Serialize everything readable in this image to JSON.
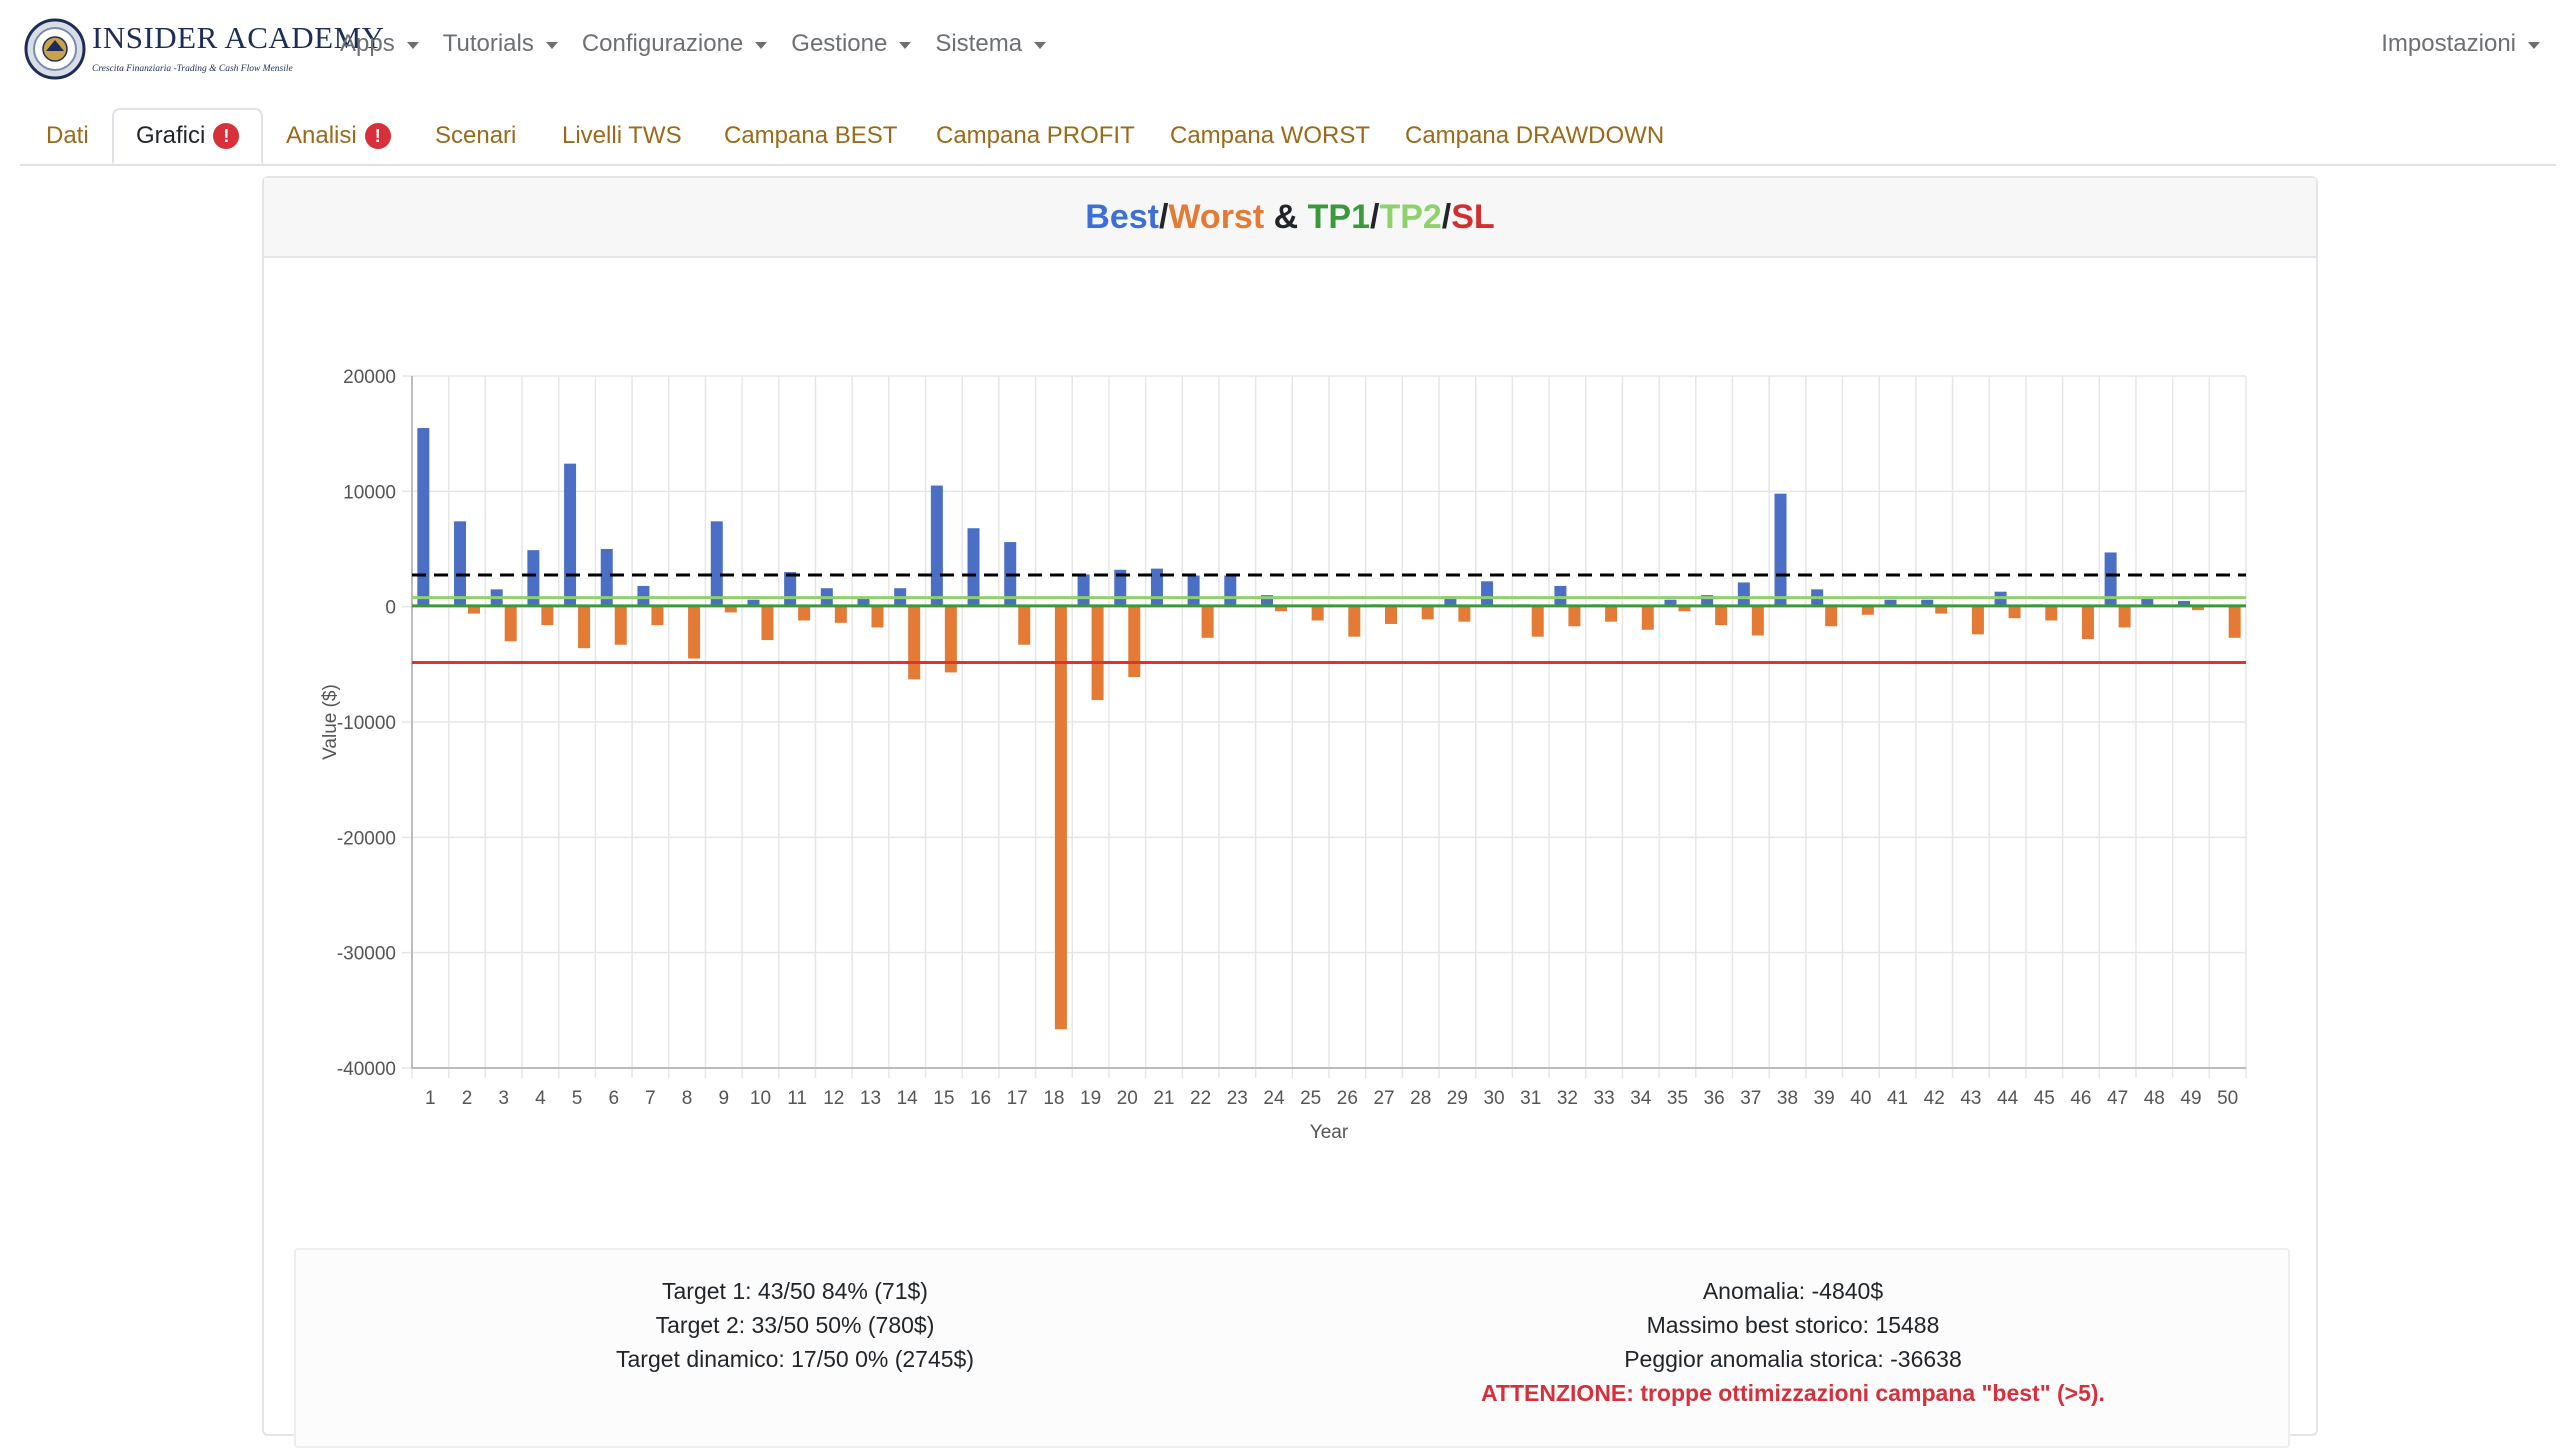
{
  "brand": {
    "name": "INSIDER ACADEMY",
    "tagline": "Crescita Finanziaria -Trading & Cash Flow Mensile"
  },
  "nav": {
    "items": [
      "Apps",
      "Tutorials",
      "Configurazione",
      "Gestione",
      "Sistema"
    ],
    "right": "Impostazioni"
  },
  "tabs": [
    {
      "label": "Dati",
      "badge": ""
    },
    {
      "label": "Grafici",
      "badge": "!"
    },
    {
      "label": "Analisi",
      "badge": "!"
    },
    {
      "label": "Scenari",
      "badge": ""
    },
    {
      "label": "Livelli TWS",
      "badge": ""
    },
    {
      "label": "Campana BEST",
      "badge": ""
    },
    {
      "label": "Campana PROFIT",
      "badge": ""
    },
    {
      "label": "Campana WORST",
      "badge": ""
    },
    {
      "label": "Campana DRAWDOWN",
      "badge": ""
    }
  ],
  "card": {
    "title_parts": [
      {
        "text": "Best",
        "color": "#3d6fd6"
      },
      {
        "text": "/",
        "color": "#212529"
      },
      {
        "text": "Worst",
        "color": "#e37a35"
      },
      {
        "text": " & ",
        "color": "#212529"
      },
      {
        "text": "TP1",
        "color": "#3a9a3a"
      },
      {
        "text": "/",
        "color": "#212529"
      },
      {
        "text": "TP2",
        "color": "#8fd16a"
      },
      {
        "text": "/",
        "color": "#212529"
      },
      {
        "text": "SL",
        "color": "#d23030"
      }
    ]
  },
  "chart_data": {
    "type": "bar",
    "xlabel": "Year",
    "ylabel": "Value ($)",
    "ylim": [
      -40000,
      20000
    ],
    "yticks": [
      20000,
      10000,
      0,
      -10000,
      -20000,
      -30000,
      -40000
    ],
    "grid": true,
    "categories": [
      "1",
      "2",
      "3",
      "4",
      "5",
      "6",
      "7",
      "8",
      "9",
      "10",
      "11",
      "12",
      "13",
      "14",
      "15",
      "16",
      "17",
      "18",
      "19",
      "20",
      "21",
      "22",
      "23",
      "24",
      "25",
      "26",
      "27",
      "28",
      "29",
      "30",
      "31",
      "32",
      "33",
      "34",
      "35",
      "36",
      "37",
      "38",
      "39",
      "40",
      "41",
      "42",
      "43",
      "44",
      "45",
      "46",
      "47",
      "48",
      "49",
      "50"
    ],
    "series": [
      {
        "color": "#4a6fc4",
        "values": [
          15488,
          7400,
          1500,
          4900,
          12400,
          5000,
          1800,
          0,
          7400,
          600,
          3000,
          1600,
          800,
          1600,
          10500,
          6800,
          5600,
          0,
          2800,
          3200,
          3300,
          2700,
          2700,
          1000,
          0,
          0,
          200,
          0,
          900,
          2200,
          200,
          1800,
          200,
          0,
          600,
          1000,
          2100,
          9800,
          1500,
          100,
          600,
          600,
          0,
          1300,
          200,
          0,
          4700,
          800,
          500,
          0
        ]
      },
      {
        "color": "#e37a35",
        "values": [
          0,
          -600,
          -3000,
          -1600,
          -3600,
          -3300,
          -1600,
          -4500,
          -500,
          -2900,
          -1200,
          -1400,
          -1800,
          -6300,
          -5700,
          0,
          -3300,
          -36638,
          -8100,
          -6100,
          0,
          -2700,
          0,
          -400,
          -1200,
          -2600,
          -1500,
          -1100,
          -1300,
          0,
          -2600,
          -1700,
          -1300,
          -2000,
          -400,
          -1600,
          -2500,
          0,
          -1700,
          -700,
          0,
          -600,
          -2400,
          -1000,
          -1200,
          -2800,
          -1800,
          0,
          -300,
          -2700
        ]
      }
    ],
    "reference_lines": [
      {
        "value": 2745,
        "color": "#000000",
        "style": "dashed"
      },
      {
        "value": 780,
        "color": "#8fd16a",
        "style": "solid"
      },
      {
        "value": 71,
        "color": "#3a9a3a",
        "style": "solid"
      },
      {
        "value": -4840,
        "color": "#e0322e",
        "style": "solid"
      }
    ]
  },
  "stats": {
    "left": [
      "Target 1: 43/50 84% (71$)",
      "Target 2: 33/50 50% (780$)",
      "Target dinamico: 17/50 0% (2745$)"
    ],
    "right": [
      "Anomalia: -4840$",
      "Massimo best storico: 15488",
      "Peggior anomalia storica: -36638"
    ],
    "warning": "ATTENZIONE: troppe ottimizzazioni campana \"best\" (>5)."
  }
}
